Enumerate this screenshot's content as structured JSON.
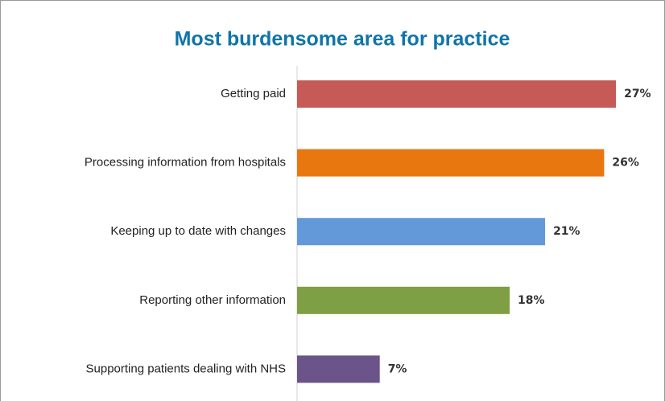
{
  "chart_data": {
    "type": "bar",
    "orientation": "horizontal",
    "title": "Most burdensome area for practice",
    "categories": [
      "Getting paid",
      "Processing information from hospitals",
      "Keeping up to date with changes",
      "Reporting other information",
      "Supporting patients dealing with NHS"
    ],
    "values": [
      27,
      26,
      21,
      18,
      7
    ],
    "value_labels": [
      "27%",
      "26%",
      "21%",
      "18%",
      "7%"
    ],
    "colors": [
      "#c55a57",
      "#e8770f",
      "#6399d9",
      "#7f9f44",
      "#6b5489"
    ]
  }
}
